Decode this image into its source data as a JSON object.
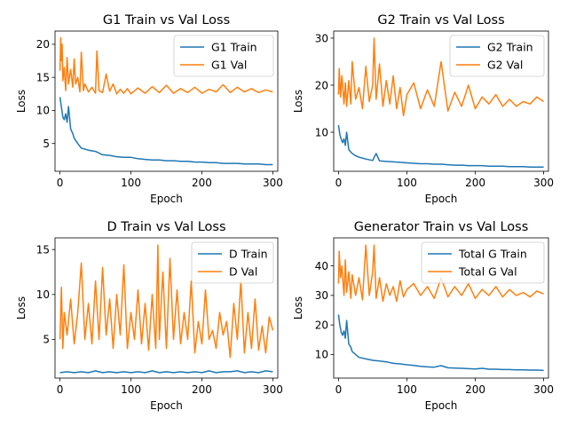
{
  "figure": {
    "background": "#ffffff"
  },
  "colors": {
    "train": "#1f77b4",
    "val": "#ff7f0e"
  },
  "chart_data": [
    {
      "type": "line",
      "title": "G1 Train vs Val Loss",
      "xlabel": "Epoch",
      "ylabel": "Loss",
      "xlim": [
        -7,
        307
      ],
      "ylim": [
        0.8,
        22.0
      ],
      "xticks": [
        0,
        100,
        200,
        300
      ],
      "yticks": [
        5,
        10,
        15,
        20
      ],
      "legend": "top-right",
      "series": [
        {
          "name": "G1 Train",
          "color": "#1f77b4",
          "x": [
            0,
            2,
            4,
            6,
            8,
            10,
            12,
            15,
            18,
            20,
            25,
            30,
            40,
            50,
            60,
            70,
            80,
            90,
            100,
            110,
            120,
            130,
            140,
            150,
            160,
            170,
            180,
            190,
            200,
            210,
            220,
            230,
            240,
            250,
            260,
            270,
            280,
            290,
            300
          ],
          "y": [
            12.0,
            10.5,
            9.0,
            8.6,
            9.5,
            8.2,
            10.6,
            7.2,
            6.5,
            5.8,
            5.0,
            4.3,
            4.0,
            3.8,
            3.3,
            3.2,
            3.0,
            2.9,
            2.9,
            2.7,
            2.6,
            2.5,
            2.5,
            2.4,
            2.4,
            2.3,
            2.3,
            2.2,
            2.2,
            2.1,
            2.1,
            2.0,
            2.0,
            2.0,
            1.9,
            1.9,
            1.9,
            1.8,
            1.8
          ]
        },
        {
          "name": "G1 Val",
          "color": "#ff7f0e",
          "x": [
            0,
            1,
            2,
            3,
            4,
            6,
            8,
            10,
            12,
            15,
            18,
            20,
            22,
            25,
            28,
            30,
            33,
            35,
            40,
            45,
            50,
            52,
            55,
            60,
            65,
            70,
            75,
            80,
            85,
            90,
            95,
            100,
            110,
            120,
            130,
            140,
            150,
            160,
            170,
            180,
            190,
            200,
            210,
            220,
            230,
            240,
            250,
            260,
            270,
            280,
            290,
            300
          ],
          "y": [
            16.0,
            21.0,
            17.5,
            20.0,
            14.5,
            16.5,
            13.0,
            18.0,
            14.0,
            16.2,
            13.5,
            17.8,
            14.0,
            15.0,
            12.8,
            18.8,
            13.0,
            14.0,
            12.8,
            13.5,
            12.6,
            19.0,
            13.0,
            12.7,
            15.5,
            12.9,
            14.0,
            12.5,
            13.2,
            12.6,
            13.3,
            12.5,
            13.4,
            12.6,
            13.6,
            12.7,
            13.8,
            12.6,
            13.3,
            12.7,
            13.5,
            12.6,
            13.2,
            12.8,
            13.9,
            12.7,
            13.5,
            12.8,
            13.3,
            12.7,
            13.1,
            12.8
          ]
        }
      ]
    },
    {
      "type": "line",
      "title": "G2 Train vs Val Loss",
      "xlabel": "Epoch",
      "ylabel": "Loss",
      "xlim": [
        -7,
        307
      ],
      "ylim": [
        1.7,
        31.5
      ],
      "xticks": [
        0,
        100,
        200,
        300
      ],
      "yticks": [
        10,
        20,
        30
      ],
      "legend": "top-right",
      "series": [
        {
          "name": "G2 Train",
          "color": "#1f77b4",
          "x": [
            0,
            2,
            4,
            6,
            8,
            10,
            12,
            15,
            18,
            20,
            25,
            30,
            40,
            50,
            55,
            60,
            70,
            80,
            90,
            100,
            110,
            120,
            130,
            140,
            150,
            160,
            170,
            180,
            190,
            200,
            210,
            220,
            230,
            240,
            250,
            260,
            270,
            280,
            290,
            300
          ],
          "y": [
            11.5,
            9.5,
            8.5,
            7.8,
            8.6,
            7.2,
            10.0,
            6.3,
            5.8,
            5.5,
            5.0,
            4.7,
            4.3,
            4.0,
            5.5,
            3.9,
            3.8,
            3.7,
            3.6,
            3.5,
            3.4,
            3.3,
            3.3,
            3.2,
            3.2,
            3.1,
            3.0,
            3.0,
            2.9,
            2.9,
            2.9,
            2.8,
            2.8,
            2.8,
            2.7,
            2.7,
            2.7,
            2.6,
            2.6,
            2.6
          ]
        },
        {
          "name": "G2 Val",
          "color": "#ff7f0e",
          "x": [
            0,
            1,
            3,
            5,
            8,
            10,
            12,
            15,
            18,
            20,
            25,
            30,
            35,
            40,
            45,
            50,
            52,
            55,
            60,
            65,
            70,
            75,
            80,
            85,
            90,
            95,
            100,
            110,
            120,
            130,
            140,
            150,
            160,
            170,
            180,
            190,
            200,
            210,
            220,
            230,
            240,
            250,
            260,
            270,
            280,
            290,
            300
          ],
          "y": [
            18.0,
            23.5,
            17.5,
            22.0,
            16.0,
            20.5,
            15.5,
            21.0,
            16.0,
            25.0,
            17.0,
            19.5,
            15.0,
            24.0,
            16.5,
            20.0,
            30.0,
            17.0,
            24.5,
            15.5,
            21.0,
            16.0,
            22.0,
            15.0,
            19.5,
            13.5,
            18.0,
            20.5,
            15.0,
            19.0,
            15.5,
            25.0,
            14.5,
            18.5,
            15.5,
            20.0,
            15.0,
            17.5,
            16.0,
            18.0,
            15.5,
            17.0,
            15.5,
            16.5,
            16.0,
            17.5,
            16.5
          ]
        }
      ]
    },
    {
      "type": "line",
      "title": "D Train vs Val Loss",
      "xlabel": "Epoch",
      "ylabel": "Loss",
      "xlim": [
        -7,
        307
      ],
      "ylim": [
        0.7,
        16.3
      ],
      "xticks": [
        0,
        100,
        200,
        300
      ],
      "yticks": [
        5,
        10,
        15
      ],
      "legend": "top-right",
      "series": [
        {
          "name": "D Train",
          "color": "#1f77b4",
          "x": [
            0,
            10,
            20,
            30,
            40,
            50,
            60,
            70,
            80,
            90,
            100,
            110,
            120,
            130,
            140,
            150,
            160,
            170,
            180,
            190,
            200,
            210,
            220,
            230,
            240,
            250,
            260,
            270,
            280,
            290,
            300
          ],
          "y": [
            1.3,
            1.4,
            1.3,
            1.4,
            1.3,
            1.5,
            1.3,
            1.4,
            1.3,
            1.4,
            1.3,
            1.4,
            1.3,
            1.5,
            1.3,
            1.4,
            1.3,
            1.4,
            1.3,
            1.4,
            1.3,
            1.5,
            1.3,
            1.4,
            1.4,
            1.5,
            1.3,
            1.4,
            1.3,
            1.5,
            1.4
          ]
        },
        {
          "name": "D Val",
          "color": "#ff7f0e",
          "x": [
            0,
            2,
            4,
            6,
            10,
            15,
            20,
            25,
            30,
            35,
            40,
            45,
            50,
            55,
            60,
            65,
            70,
            75,
            80,
            85,
            90,
            95,
            100,
            105,
            110,
            115,
            120,
            125,
            130,
            135,
            138,
            140,
            145,
            150,
            155,
            160,
            165,
            170,
            175,
            180,
            185,
            190,
            195,
            200,
            205,
            210,
            215,
            220,
            225,
            230,
            235,
            240,
            245,
            250,
            255,
            260,
            265,
            270,
            275,
            280,
            285,
            290,
            295,
            300
          ],
          "y": [
            5.0,
            10.8,
            4.0,
            8.0,
            5.5,
            9.5,
            4.5,
            8.0,
            13.5,
            5.0,
            9.0,
            4.5,
            11.5,
            5.0,
            13.0,
            5.5,
            9.5,
            4.0,
            10.0,
            5.5,
            13.3,
            4.0,
            8.0,
            5.0,
            10.5,
            4.5,
            9.0,
            3.8,
            10.0,
            4.0,
            15.5,
            5.0,
            12.5,
            4.0,
            14.0,
            5.0,
            10.5,
            4.5,
            8.0,
            5.0,
            11.5,
            3.5,
            7.0,
            4.5,
            10.5,
            5.0,
            6.0,
            4.0,
            8.0,
            5.5,
            7.0,
            3.0,
            9.0,
            5.0,
            11.5,
            3.5,
            8.0,
            4.0,
            9.5,
            3.8,
            6.5,
            3.5,
            7.5,
            6.0
          ]
        }
      ]
    },
    {
      "type": "line",
      "title": "Generator Train vs Val Loss",
      "xlabel": "Epoch",
      "ylabel": "Loss",
      "xlim": [
        -7,
        307
      ],
      "ylim": [
        2.0,
        49.5
      ],
      "xticks": [
        0,
        100,
        200,
        300
      ],
      "yticks": [
        10,
        20,
        30,
        40
      ],
      "legend": "top-right",
      "series": [
        {
          "name": "Total G Train",
          "color": "#1f77b4",
          "x": [
            0,
            2,
            4,
            6,
            8,
            10,
            12,
            15,
            18,
            20,
            25,
            30,
            40,
            50,
            60,
            70,
            80,
            90,
            100,
            110,
            120,
            130,
            140,
            150,
            160,
            170,
            180,
            190,
            200,
            210,
            220,
            230,
            240,
            250,
            260,
            270,
            280,
            290,
            300
          ],
          "y": [
            23.5,
            20.0,
            17.5,
            16.5,
            18.0,
            15.5,
            21.5,
            13.5,
            12.5,
            11.0,
            10.0,
            9.0,
            8.5,
            8.0,
            7.8,
            7.5,
            7.0,
            6.8,
            6.5,
            6.3,
            6.0,
            5.8,
            5.7,
            6.2,
            5.5,
            5.4,
            5.3,
            5.2,
            5.1,
            5.3,
            5.0,
            5.0,
            4.9,
            4.9,
            4.8,
            4.8,
            4.7,
            4.7,
            4.6
          ]
        },
        {
          "name": "Total G Val",
          "color": "#ff7f0e",
          "x": [
            0,
            1,
            3,
            5,
            8,
            10,
            12,
            15,
            18,
            20,
            25,
            30,
            35,
            40,
            45,
            50,
            52,
            55,
            60,
            65,
            70,
            75,
            80,
            85,
            90,
            95,
            100,
            110,
            120,
            130,
            140,
            150,
            160,
            170,
            180,
            190,
            200,
            210,
            220,
            230,
            240,
            250,
            260,
            270,
            280,
            290,
            300
          ],
          "y": [
            34.0,
            45.0,
            36.0,
            40.0,
            30.0,
            42.0,
            31.0,
            38.0,
            29.0,
            37.0,
            30.0,
            36.0,
            28.5,
            47.0,
            30.0,
            38.0,
            47.0,
            29.0,
            36.0,
            28.0,
            34.0,
            30.0,
            33.0,
            28.0,
            35.0,
            29.5,
            32.0,
            34.0,
            30.0,
            33.0,
            29.0,
            36.0,
            29.5,
            33.0,
            30.0,
            34.0,
            29.0,
            32.0,
            30.0,
            33.0,
            29.5,
            32.0,
            30.0,
            31.0,
            29.5,
            31.5,
            30.5
          ]
        }
      ]
    }
  ]
}
